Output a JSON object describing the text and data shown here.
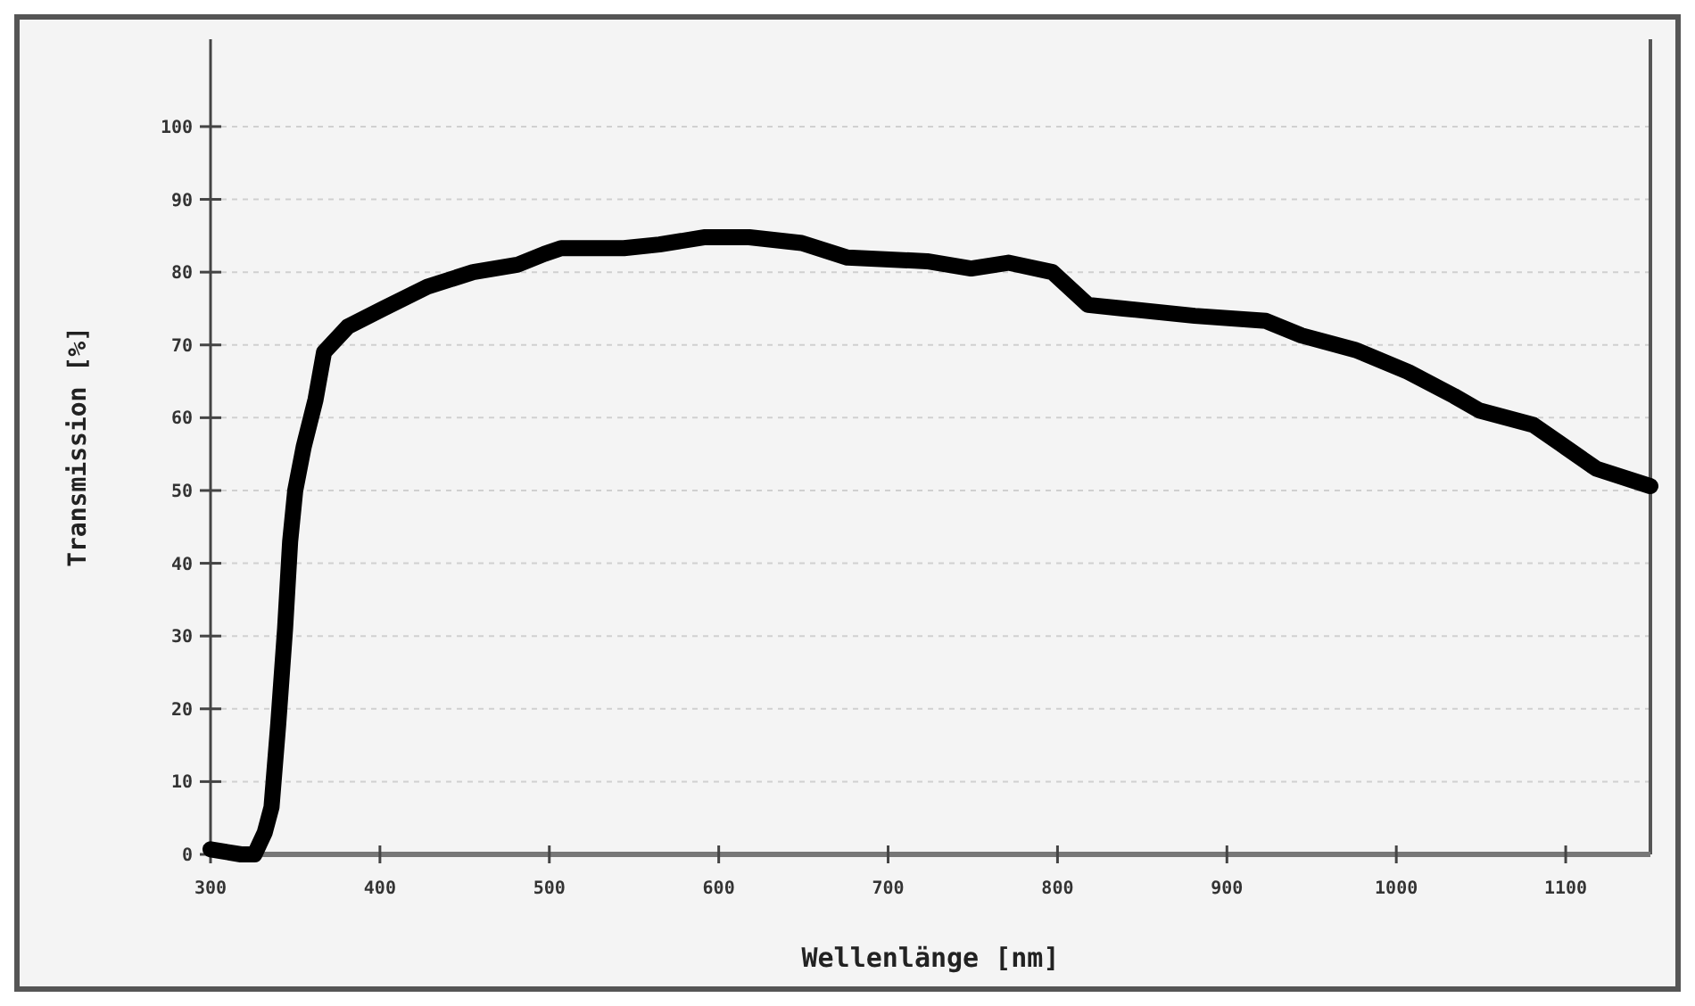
{
  "chart_data": {
    "type": "line",
    "xlabel": "Wellenlänge [nm]",
    "ylabel": "Transmission [%]",
    "xlim": [
      300,
      1150
    ],
    "xticks": [
      300,
      400,
      500,
      600,
      700,
      800,
      900,
      1000,
      1100
    ],
    "ylim": [
      0,
      112
    ],
    "yticks": [
      0,
      10,
      20,
      30,
      40,
      50,
      60,
      70,
      80,
      90,
      100
    ],
    "grid": "y",
    "line_style": "solid",
    "series": [
      {
        "color": "#000000",
        "x": [
          300,
          318,
          326,
          332,
          336,
          340,
          344,
          347,
          350,
          355,
          362,
          367,
          381,
          402,
          428,
          455,
          481,
          497,
          507,
          544,
          565,
          592,
          618,
          649,
          676,
          723,
          749,
          771,
          797,
          818,
          839,
          881,
          923,
          944,
          976,
          1007,
          1034,
          1049,
          1081,
          1097,
          1118,
          1150
        ],
        "values": [
          0.7,
          0,
          0,
          3,
          6.5,
          18,
          31,
          43,
          50,
          56,
          62.5,
          69,
          72.5,
          75,
          78,
          80,
          81,
          82.5,
          83.3,
          83.3,
          83.8,
          84.8,
          84.8,
          84,
          82,
          81.5,
          80.5,
          81.3,
          80,
          75.5,
          75,
          74,
          73.3,
          71.3,
          69.3,
          66.3,
          63,
          61,
          59,
          56.4,
          53,
          50.6
        ]
      }
    ]
  }
}
